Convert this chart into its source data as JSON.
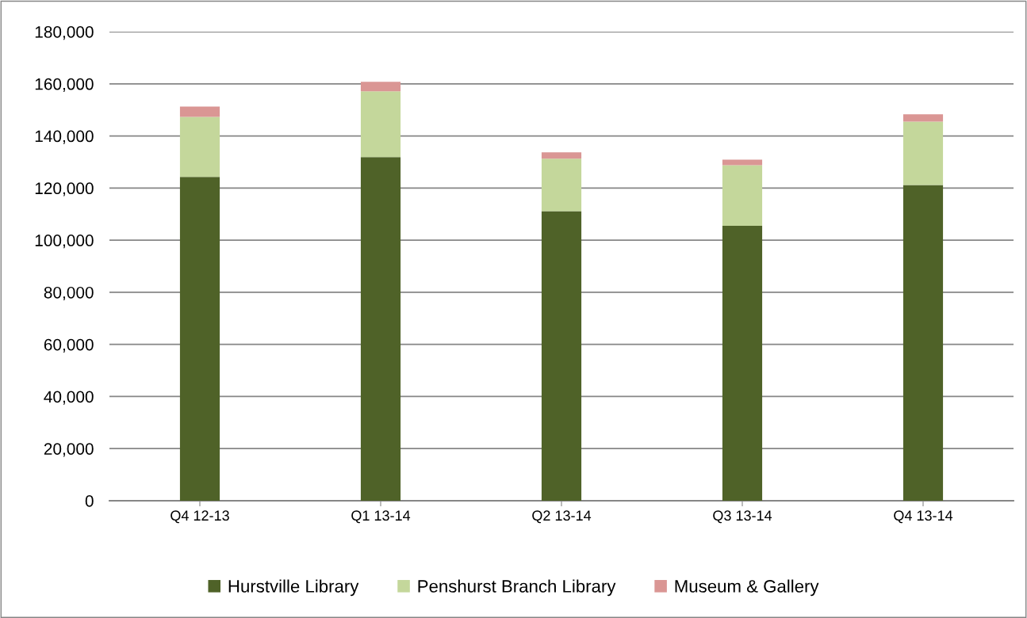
{
  "chart_data": {
    "type": "bar",
    "stacked": true,
    "categories": [
      "Q4 12-13",
      "Q1 13-14",
      "Q2 13-14",
      "Q3 13-14",
      "Q4 13-14"
    ],
    "series": [
      {
        "name": "Hurstville Library",
        "color": "#4f6228",
        "values": [
          124300,
          131900,
          111100,
          105500,
          121200
        ]
      },
      {
        "name": "Penshurst Branch Library",
        "color": "#c4d79b",
        "values": [
          23000,
          25200,
          20200,
          23300,
          24300
        ]
      },
      {
        "name": "Museum & Gallery",
        "color": "#da9694",
        "values": [
          4000,
          3700,
          2400,
          2100,
          2800
        ]
      }
    ],
    "ylim": [
      0,
      180000
    ],
    "yticks": [
      {
        "value": 0,
        "label": "0"
      },
      {
        "value": 20000,
        "label": "20,000"
      },
      {
        "value": 40000,
        "label": "40,000"
      },
      {
        "value": 60000,
        "label": "60,000"
      },
      {
        "value": 80000,
        "label": "80,000"
      },
      {
        "value": 100000,
        "label": "100,000"
      },
      {
        "value": 120000,
        "label": "120,000"
      },
      {
        "value": 140000,
        "label": "140,000"
      },
      {
        "value": 160000,
        "label": "160,000"
      },
      {
        "value": 180000,
        "label": "180,000"
      }
    ],
    "grid": "y",
    "legend": "bottom"
  }
}
